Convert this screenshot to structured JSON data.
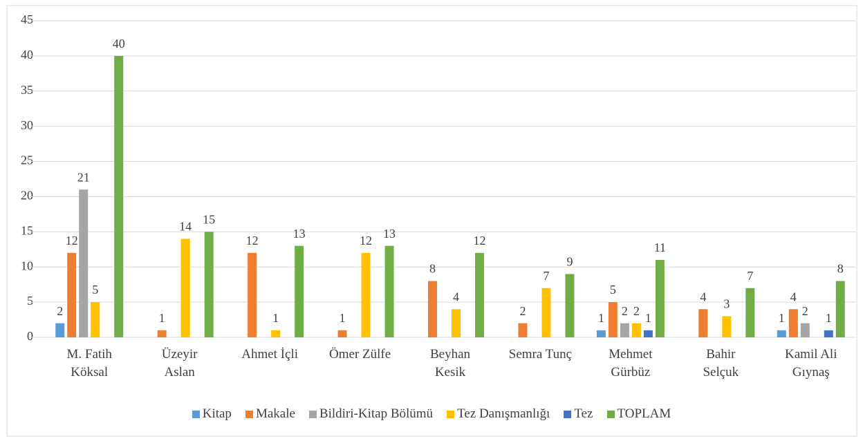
{
  "chart_data": {
    "type": "bar",
    "categories": [
      "M. Fatih\nKöksal",
      "Üzeyir\nAslan",
      "Ahmet İçli",
      "Ömer Zülfe",
      "Beyhan\nKesik",
      "Semra Tunç",
      "Mehmet\nGürbüz",
      "Bahir\nSelçuk",
      "Kamil Ali\nGıynaş"
    ],
    "series": [
      {
        "name": "Kitap",
        "color": "#5b9bd5",
        "values": [
          2,
          null,
          null,
          null,
          null,
          null,
          1,
          null,
          1
        ]
      },
      {
        "name": "Makale",
        "color": "#ed7d31",
        "values": [
          12,
          1,
          12,
          1,
          8,
          2,
          5,
          4,
          4
        ]
      },
      {
        "name": "Bildiri-Kitap Bölümü",
        "color": "#a5a5a5",
        "values": [
          21,
          null,
          null,
          null,
          null,
          null,
          2,
          null,
          2
        ]
      },
      {
        "name": "Tez Danışmanlığı",
        "color": "#ffc000",
        "values": [
          5,
          14,
          1,
          12,
          4,
          7,
          2,
          3,
          null
        ]
      },
      {
        "name": "Tez",
        "color": "#4472c4",
        "values": [
          null,
          null,
          null,
          null,
          null,
          null,
          1,
          null,
          1
        ]
      },
      {
        "name": "TOPLAM",
        "color": "#70ad47",
        "values": [
          40,
          15,
          13,
          13,
          12,
          9,
          11,
          7,
          8
        ]
      }
    ],
    "ylim": [
      0,
      45
    ],
    "yticks": [
      0,
      5,
      10,
      15,
      20,
      25,
      30,
      35,
      40,
      45
    ],
    "grid": true,
    "legend": "bottom"
  }
}
